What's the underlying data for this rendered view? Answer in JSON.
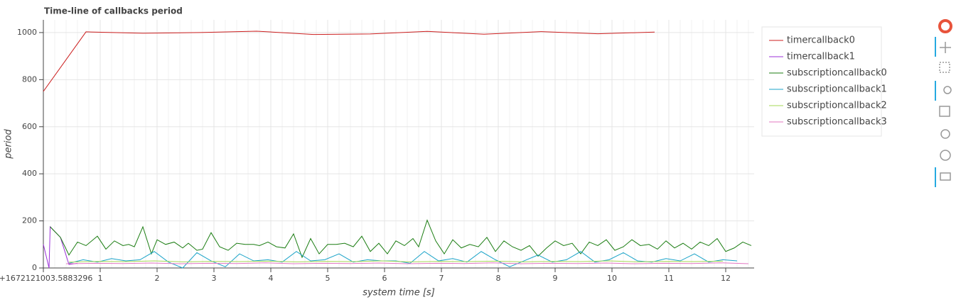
{
  "chart_data": {
    "type": "line",
    "title": "Time-line of callbacks period",
    "x_label": "system time [s]",
    "y_label": "period",
    "xlim": [
      0,
      12.5
    ],
    "ylim": [
      0,
      1054
    ],
    "xticks": [
      {
        "value": 0,
        "label": "0+1672121003.5883296"
      },
      1,
      2,
      3,
      4,
      5,
      6,
      7,
      8,
      9,
      10,
      11,
      12
    ],
    "yticks": [
      0,
      200,
      400,
      600,
      800,
      1000
    ],
    "grid": true,
    "legend": "right",
    "series": [
      {
        "name": "timercallback0",
        "color": "#cc1f1f",
        "x": [
          0,
          0.75,
          1.75,
          2.75,
          3.75,
          4.75,
          5.75,
          6.75,
          7.75,
          8.75,
          9.75,
          10.75
        ],
        "values": [
          750,
          1003,
          997,
          1000,
          1006,
          992,
          994,
          1005,
          993,
          1004,
          995,
          1002
        ]
      },
      {
        "name": "timercallback1",
        "color": "#9b30d9",
        "x": [
          0,
          0.1,
          0.12,
          0.3,
          0.45,
          0.6
        ],
        "values": [
          100,
          0,
          175,
          130,
          15,
          20
        ]
      },
      {
        "name": "subscriptioncallback0",
        "color": "#1b7d12",
        "x": [
          0.12,
          0.3,
          0.45,
          0.6,
          0.75,
          0.95,
          1.1,
          1.25,
          1.4,
          1.5,
          1.6,
          1.75,
          1.9,
          2.0,
          2.15,
          2.3,
          2.45,
          2.55,
          2.7,
          2.8,
          2.95,
          3.1,
          3.25,
          3.4,
          3.55,
          3.7,
          3.8,
          3.95,
          4.1,
          4.25,
          4.4,
          4.55,
          4.7,
          4.85,
          5.0,
          5.15,
          5.3,
          5.45,
          5.6,
          5.75,
          5.9,
          6.05,
          6.2,
          6.35,
          6.5,
          6.6,
          6.75,
          6.9,
          7.05,
          7.2,
          7.35,
          7.5,
          7.65,
          7.8,
          7.95,
          8.1,
          8.25,
          8.4,
          8.55,
          8.7,
          8.85,
          9.0,
          9.15,
          9.3,
          9.45,
          9.6,
          9.75,
          9.9,
          10.05,
          10.2,
          10.35,
          10.5,
          10.65,
          10.8,
          10.95,
          11.1,
          11.25,
          11.4,
          11.55,
          11.7,
          11.85,
          12.0,
          12.15,
          12.3,
          12.45
        ],
        "values": [
          175,
          130,
          55,
          110,
          95,
          135,
          80,
          115,
          95,
          100,
          90,
          175,
          60,
          120,
          100,
          110,
          85,
          105,
          75,
          80,
          150,
          90,
          75,
          105,
          100,
          100,
          95,
          110,
          90,
          85,
          145,
          45,
          125,
          60,
          100,
          100,
          105,
          90,
          135,
          70,
          105,
          60,
          115,
          95,
          125,
          90,
          203,
          115,
          60,
          120,
          85,
          100,
          90,
          130,
          70,
          115,
          90,
          75,
          95,
          50,
          85,
          115,
          95,
          105,
          60,
          110,
          95,
          120,
          75,
          90,
          120,
          95,
          100,
          80,
          115,
          85,
          105,
          80,
          110,
          95,
          125,
          70,
          85,
          110,
          95
        ]
      },
      {
        "name": "subscriptioncallback1",
        "color": "#1aa3c8",
        "x": [
          0.45,
          0.7,
          0.95,
          1.2,
          1.45,
          1.7,
          1.95,
          2.2,
          2.45,
          2.7,
          2.95,
          3.2,
          3.45,
          3.7,
          3.95,
          4.2,
          4.45,
          4.7,
          4.95,
          5.2,
          5.45,
          5.7,
          5.95,
          6.2,
          6.45,
          6.7,
          6.95,
          7.2,
          7.45,
          7.7,
          7.95,
          8.2,
          8.45,
          8.7,
          8.95,
          9.2,
          9.45,
          9.7,
          9.95,
          10.2,
          10.45,
          10.7,
          10.95,
          11.2,
          11.45,
          11.7,
          11.95,
          12.2
        ],
        "values": [
          20,
          35,
          25,
          40,
          30,
          35,
          70,
          25,
          0,
          65,
          30,
          5,
          60,
          30,
          35,
          25,
          70,
          30,
          35,
          60,
          25,
          35,
          30,
          30,
          20,
          70,
          30,
          40,
          25,
          70,
          35,
          5,
          30,
          55,
          25,
          35,
          70,
          25,
          35,
          65,
          30,
          25,
          40,
          30,
          60,
          25,
          35,
          30
        ]
      },
      {
        "name": "subscriptioncallback2",
        "color": "#a6d854",
        "x": [
          0.45,
          0.95,
          1.45,
          1.95,
          2.45,
          2.95,
          3.45,
          3.95,
          4.45,
          4.95,
          5.45,
          5.95,
          6.45,
          6.95,
          7.45,
          7.95,
          8.45,
          8.95,
          9.45,
          9.95,
          10.45,
          10.95,
          11.45,
          11.95
        ],
        "values": [
          25,
          28,
          27,
          30,
          26,
          28,
          27,
          29,
          26,
          28,
          27,
          30,
          26,
          28,
          27,
          29,
          26,
          28,
          27,
          30,
          26,
          28,
          27,
          29
        ]
      },
      {
        "name": "subscriptioncallback3",
        "color": "#e377c2",
        "x": [
          0.4,
          0.9,
          1.4,
          1.9,
          2.4,
          2.9,
          3.4,
          3.9,
          4.4,
          4.9,
          5.4,
          5.9,
          6.4,
          6.9,
          7.4,
          7.9,
          8.4,
          8.9,
          9.4,
          9.9,
          10.4,
          10.9,
          11.4,
          11.9,
          12.4
        ],
        "values": [
          18,
          20,
          19,
          21,
          18,
          20,
          19,
          22,
          18,
          20,
          19,
          21,
          18,
          20,
          19,
          22,
          18,
          20,
          19,
          21,
          18,
          20,
          19,
          22,
          18
        ]
      }
    ]
  }
}
